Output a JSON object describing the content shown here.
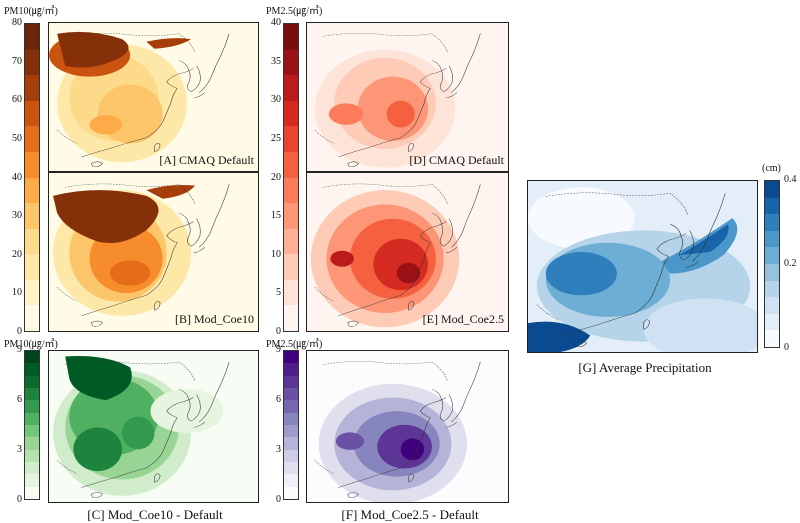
{
  "colorbars": {
    "pm10_abs": {
      "unit": "PM10(㎍/㎥)",
      "ticks": [
        "0",
        "10",
        "20",
        "30",
        "40",
        "50",
        "60",
        "70",
        "80"
      ],
      "colors": [
        "#fffbe6",
        "#fff3c4",
        "#fee8a8",
        "#fdd98a",
        "#fdc56a",
        "#fcab48",
        "#f68c2b",
        "#e56d1a",
        "#c9530f",
        "#a53e0a",
        "#86300a",
        "#6b2508"
      ]
    },
    "pm25_abs": {
      "unit": "PM2.5(㎍/㎥)",
      "ticks": [
        "0",
        "5",
        "10",
        "15",
        "20",
        "25",
        "30",
        "35",
        "40"
      ],
      "colors": [
        "#fff5f0",
        "#fee4d8",
        "#fdcbb6",
        "#fcb095",
        "#fc9677",
        "#fb7b5b",
        "#f5603f",
        "#e9442f",
        "#d42a22",
        "#bb1b1b",
        "#9a1216",
        "#7b0d10"
      ]
    },
    "pm10_diff": {
      "unit": "PM10(㎍/㎥)",
      "ticks": [
        "0",
        "3",
        "6",
        "9"
      ],
      "colors": [
        "#f7fcf5",
        "#e5f5e0",
        "#d0eccb",
        "#b6e2ad",
        "#98d594",
        "#75c67a",
        "#4fb062",
        "#329a4f",
        "#1c843d",
        "#0c6b2c",
        "#005a24",
        "#00441b"
      ]
    },
    "pm25_diff": {
      "unit": "PM2.5(㎍/㎥)",
      "ticks": [
        "0",
        "3",
        "6",
        "9"
      ],
      "colors": [
        "#fcfbfd",
        "#f0eef6",
        "#e0dfee",
        "#cdcde5",
        "#b5b4d8",
        "#9e9ac9",
        "#8785bd",
        "#7766b0",
        "#6a51a3",
        "#5d3596",
        "#4d1d89",
        "#3f007d"
      ]
    },
    "precip": {
      "unit": "(cm)",
      "ticks": [
        "0",
        "0.2",
        "0.4"
      ],
      "colors": [
        "#f7fbff",
        "#e3eef9",
        "#cfe1f2",
        "#b5d4e9",
        "#93c3df",
        "#6daed5",
        "#4b97c9",
        "#2f7fbc",
        "#1864aa",
        "#0a4a90"
      ]
    }
  },
  "panels": {
    "a": "[A] CMAQ Default",
    "b": "[B] Mod_Coe10",
    "c": "[C] Mod_Coe10 - Default",
    "d": "[D] CMAQ Default",
    "e": "[E] Mod_Coe2.5",
    "f": "[F] Mod_Coe2.5 - Default",
    "g": "[G] Average Precipitation"
  }
}
